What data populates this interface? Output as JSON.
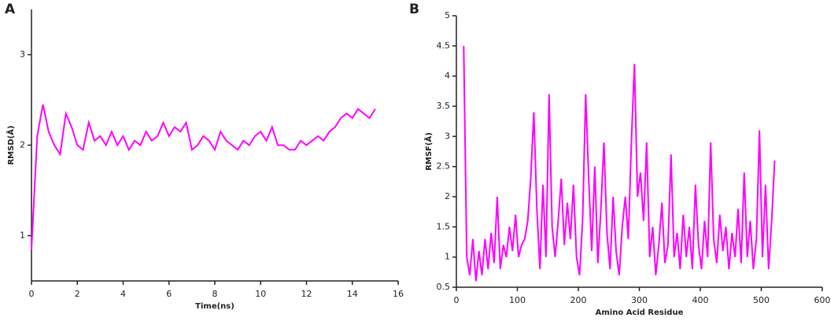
{
  "chart_data": [
    {
      "type": "line",
      "panel": "A",
      "x_label": "Time(ns)",
      "y_label": "RMSD(Å)",
      "xlim": [
        0,
        16
      ],
      "ylim": [
        0.5,
        3.5
      ],
      "xticks": [
        0,
        2,
        4,
        6,
        8,
        10,
        12,
        14,
        16
      ],
      "yticks": [
        1,
        2,
        3
      ],
      "x": [
        0,
        0.25,
        0.5,
        0.75,
        1,
        1.25,
        1.5,
        1.75,
        2,
        2.25,
        2.5,
        2.75,
        3,
        3.25,
        3.5,
        3.75,
        4,
        4.25,
        4.5,
        4.75,
        5,
        5.25,
        5.5,
        5.75,
        6,
        6.25,
        6.5,
        6.75,
        7,
        7.25,
        7.5,
        7.75,
        8,
        8.25,
        8.5,
        8.75,
        9,
        9.25,
        9.5,
        9.75,
        10,
        10.25,
        10.5,
        10.75,
        11,
        11.25,
        11.5,
        11.75,
        12,
        12.25,
        12.5,
        12.75,
        13,
        13.25,
        13.5,
        13.75,
        14,
        14.25,
        14.5,
        14.75,
        15
      ],
      "series": [
        {
          "color": "#ff00ff",
          "values": [
            0.85,
            2.1,
            2.45,
            2.15,
            2.0,
            1.9,
            2.35,
            2.2,
            2.0,
            1.95,
            2.25,
            2.05,
            2.1,
            2.0,
            2.15,
            2.0,
            2.1,
            1.95,
            2.05,
            2.0,
            2.15,
            2.05,
            2.1,
            2.25,
            2.1,
            2.2,
            2.15,
            2.25,
            1.95,
            2.0,
            2.1,
            2.05,
            1.95,
            2.15,
            2.05,
            2.0,
            1.95,
            2.05,
            2.0,
            2.1,
            2.15,
            2.05,
            2.2,
            2.0,
            2.0,
            1.95,
            1.95,
            2.05,
            2.0,
            2.05,
            2.1,
            2.05,
            2.15,
            2.2,
            2.3,
            2.35,
            2.3,
            2.4,
            2.35,
            2.3,
            2.4
          ]
        }
      ]
    },
    {
      "type": "line",
      "panel": "B",
      "x_label": "Amino Acid Residue",
      "y_label": "RMSF(Å)",
      "xlim": [
        0,
        600
      ],
      "ylim": [
        0.5,
        5
      ],
      "xticks": [
        0,
        100,
        200,
        300,
        400,
        500,
        600
      ],
      "yticks": [
        0.5,
        1,
        1.5,
        2,
        2.5,
        3,
        3.5,
        4,
        4.5,
        5
      ],
      "x": [
        12,
        17,
        22,
        27,
        32,
        37,
        42,
        47,
        52,
        57,
        62,
        67,
        72,
        77,
        82,
        87,
        92,
        97,
        102,
        107,
        112,
        117,
        122,
        127,
        132,
        137,
        142,
        147,
        152,
        157,
        162,
        167,
        172,
        177,
        182,
        187,
        192,
        197,
        202,
        207,
        212,
        217,
        222,
        227,
        232,
        237,
        242,
        247,
        252,
        257,
        262,
        267,
        272,
        277,
        282,
        287,
        292,
        297,
        302,
        307,
        312,
        317,
        322,
        327,
        332,
        337,
        342,
        347,
        352,
        357,
        362,
        367,
        372,
        377,
        382,
        387,
        392,
        397,
        402,
        407,
        412,
        417,
        422,
        427,
        432,
        437,
        442,
        447,
        452,
        457,
        462,
        467,
        472,
        477,
        482,
        487,
        492,
        497,
        502,
        507,
        512,
        517,
        522
      ],
      "series": [
        {
          "color": "#ff00ff",
          "values": [
            4.5,
            1.0,
            0.7,
            1.3,
            0.6,
            1.1,
            0.7,
            1.3,
            0.8,
            1.4,
            0.9,
            2.0,
            0.8,
            1.2,
            1.0,
            1.5,
            1.1,
            1.7,
            1.0,
            1.2,
            1.3,
            1.6,
            2.3,
            3.4,
            1.8,
            0.8,
            2.2,
            1.0,
            3.7,
            1.5,
            1.0,
            1.6,
            2.3,
            1.2,
            1.9,
            1.3,
            2.2,
            1.0,
            0.7,
            1.6,
            3.7,
            2.3,
            1.1,
            2.5,
            0.9,
            1.8,
            2.9,
            1.4,
            0.8,
            2.0,
            1.1,
            0.7,
            1.5,
            2.0,
            1.3,
            2.9,
            4.2,
            2.0,
            2.4,
            1.6,
            2.9,
            1.0,
            1.5,
            0.7,
            1.2,
            1.9,
            0.9,
            1.2,
            2.7,
            1.0,
            1.4,
            0.8,
            1.7,
            1.0,
            1.5,
            0.8,
            2.2,
            1.2,
            0.8,
            1.6,
            1.0,
            2.9,
            1.3,
            0.9,
            1.7,
            1.1,
            1.5,
            0.8,
            1.4,
            1.0,
            1.8,
            0.9,
            2.4,
            1.0,
            1.6,
            0.8,
            1.3,
            3.1,
            1.0,
            2.2,
            0.8,
            1.6,
            2.6
          ]
        }
      ]
    }
  ]
}
